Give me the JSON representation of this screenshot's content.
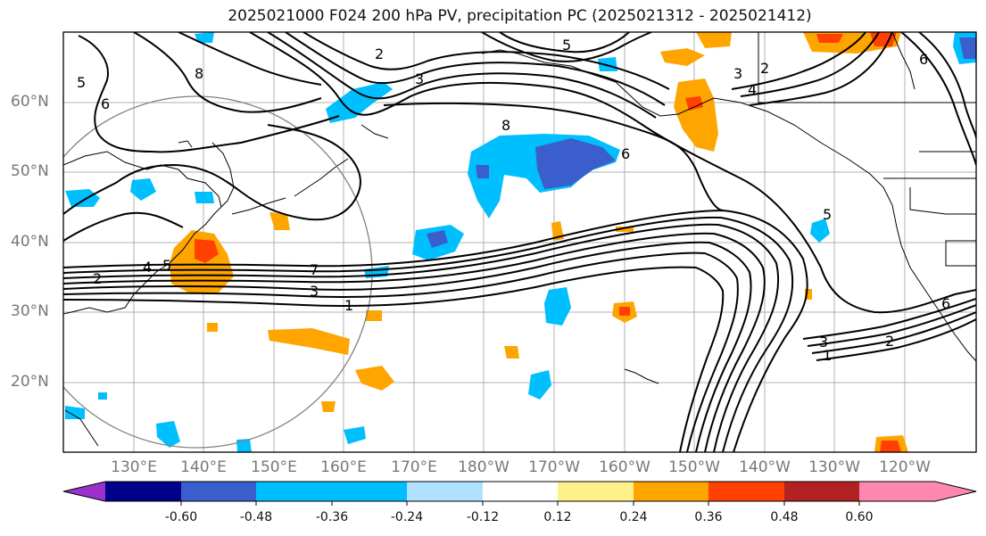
{
  "title": "2025021000 F024 200 hPa PV, precipitation PC (2025021312 - 2025021412)",
  "lat_labels": [
    "60°N",
    "50°N",
    "40°N",
    "30°N",
    "20°N"
  ],
  "lon_labels": [
    "130°E",
    "140°E",
    "150°E",
    "160°E",
    "170°E",
    "180°W",
    "170°W",
    "160°W",
    "150°W",
    "140°W",
    "130°W",
    "120°W"
  ],
  "colorbar": {
    "colors": [
      "#9932cc",
      "#00008b",
      "#3a5fcd",
      "#00bfff",
      "#b0e2ff",
      "#ffffff",
      "#fff08a",
      "#ffa500",
      "#ff4000",
      "#b22222",
      "#ff88b0"
    ],
    "tick_labels": [
      "-0.60",
      "-0.48",
      "-0.36",
      "-0.24",
      "-0.12",
      "0.12",
      "0.24",
      "0.36",
      "0.48",
      "0.60"
    ]
  },
  "contour_labels": [
    "2",
    "5",
    "3",
    "2",
    "3",
    "4",
    "8",
    "6",
    "8",
    "5",
    "6",
    "4",
    "5",
    "2",
    "7",
    "3",
    "1",
    "6",
    "3",
    "2",
    "1",
    "6",
    "5"
  ],
  "colors": {
    "frame": "#000000",
    "grid": "#b0b0b0",
    "contour": "#000000",
    "circle": "#808080",
    "tick_text": "#777777"
  }
}
